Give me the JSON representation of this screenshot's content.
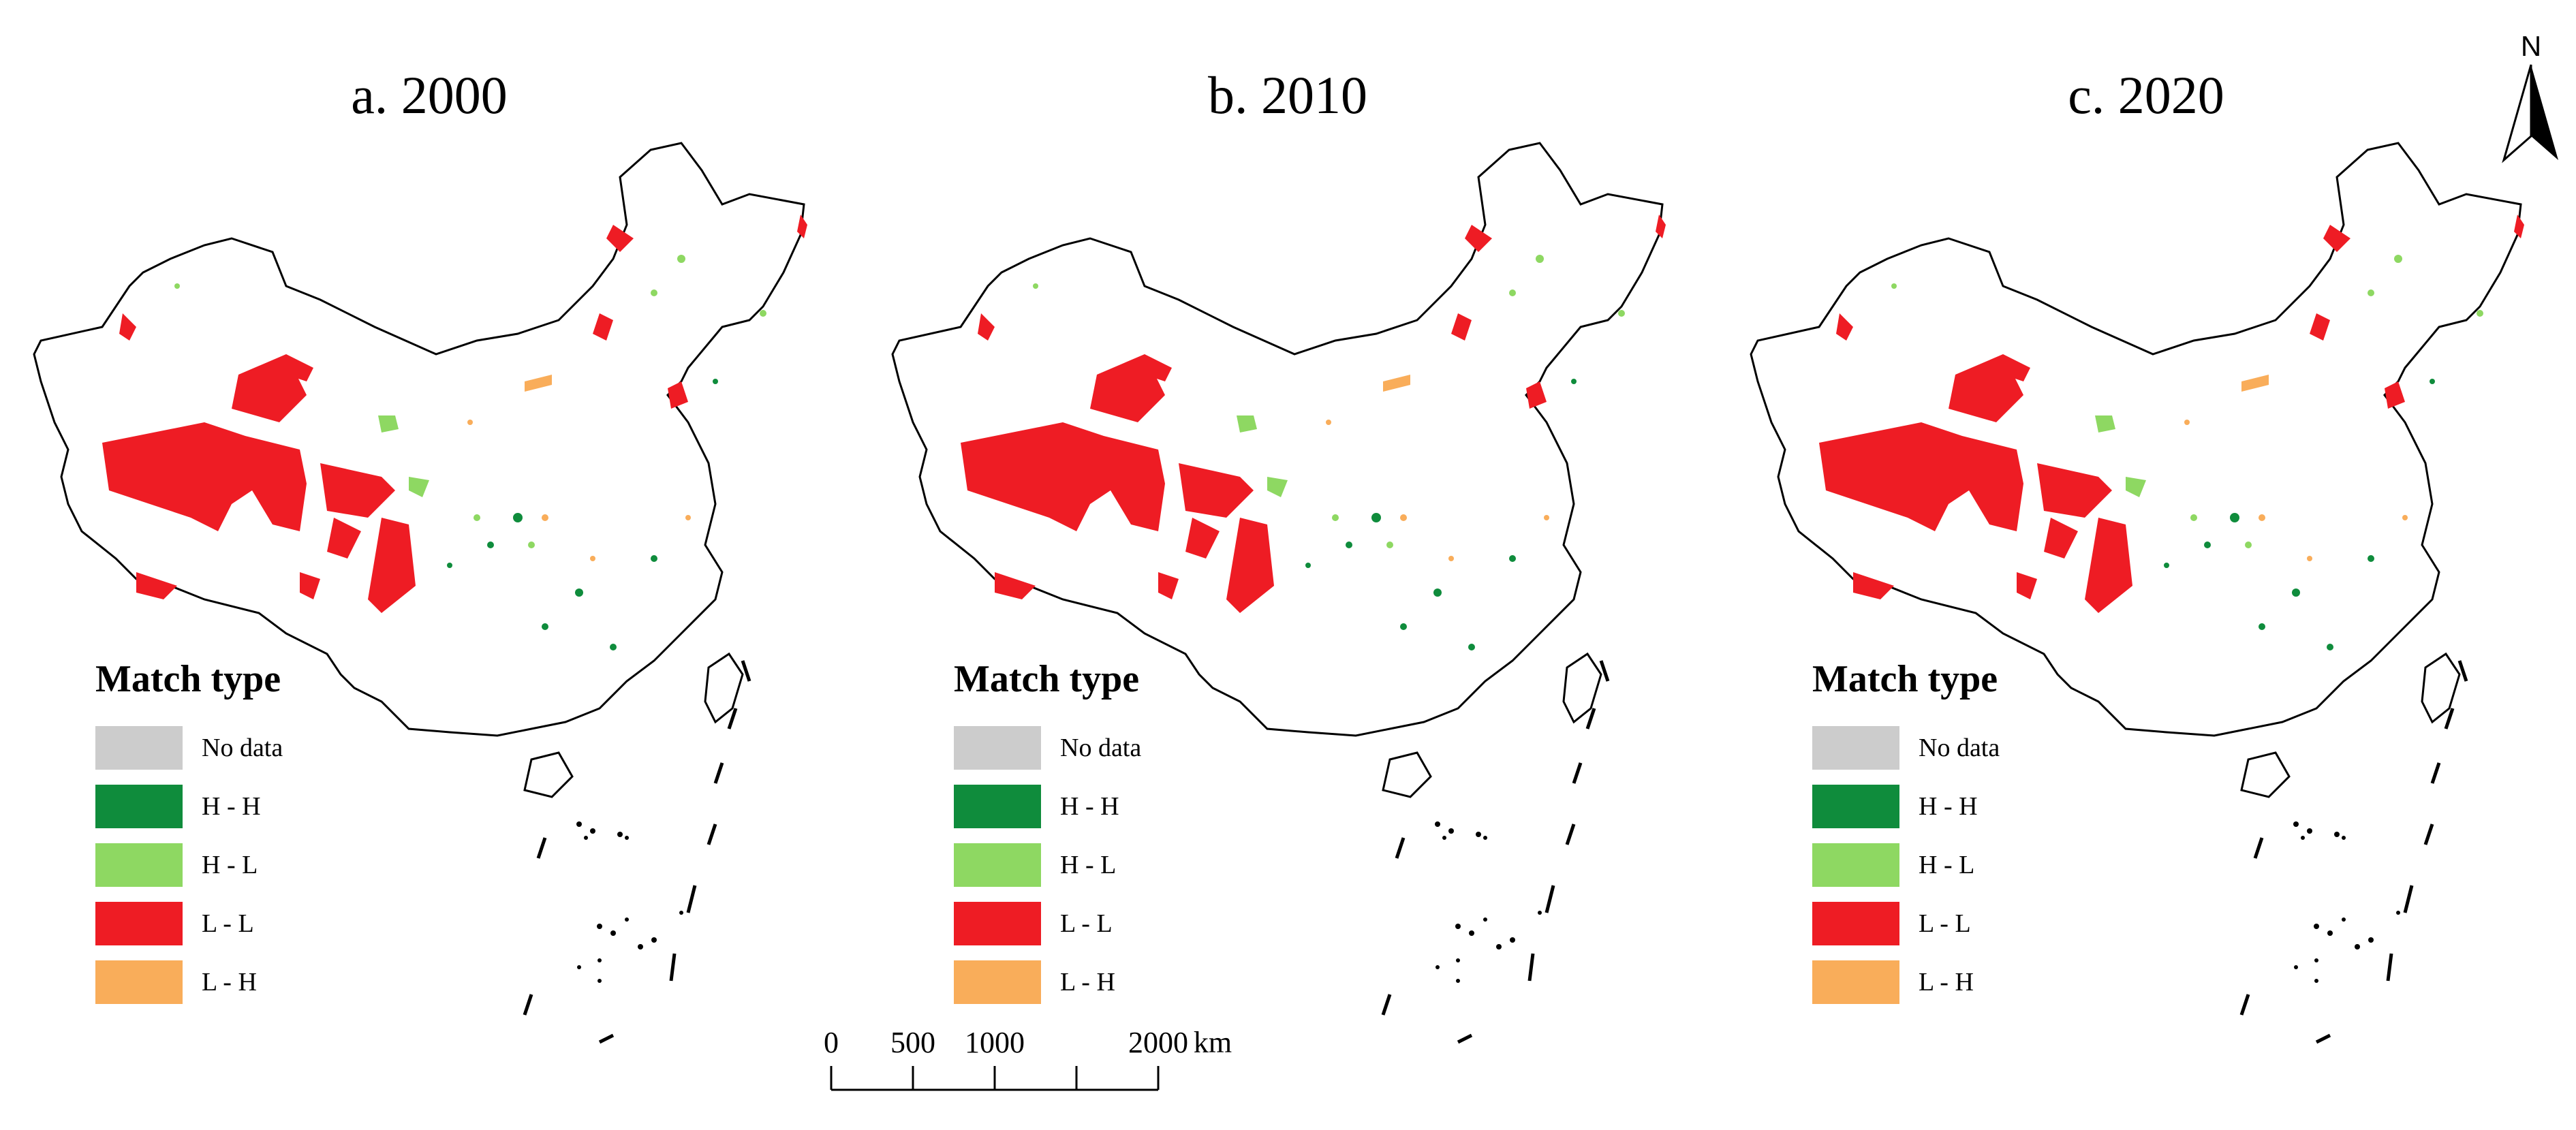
{
  "panels": [
    {
      "title": "a. 2000",
      "legend_title": "Match type"
    },
    {
      "title": "b. 2010",
      "legend_title": "Match type"
    },
    {
      "title": "c. 2020",
      "legend_title": "Match type"
    }
  ],
  "legend": [
    {
      "label": "No data",
      "color": "#cccccc"
    },
    {
      "label": "H - H",
      "color": "#0f8c3c"
    },
    {
      "label": "H - L",
      "color": "#8ed862"
    },
    {
      "label": "L - L",
      "color": "#ee1c24"
    },
    {
      "label": "L - H",
      "color": "#f9ad5a"
    }
  ],
  "scale": {
    "labels": [
      "0",
      "500",
      "1000",
      "2000"
    ],
    "unit": "km"
  },
  "north_label": "N"
}
